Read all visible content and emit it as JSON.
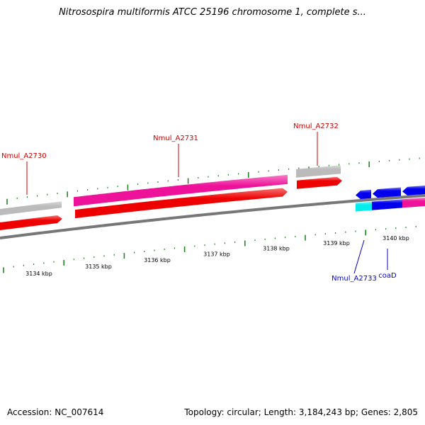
{
  "title": "Nitrosospira multiformis ATCC 25196 chromosome 1, complete s...",
  "footer": {
    "accession": "Accession: NC_007614",
    "stats": "Topology: circular; Length: 3,184,243 bp; Genes: 2,805"
  },
  "colors": {
    "backbone": "#777777",
    "tick": "#228822",
    "label_forward": "#cc0000",
    "label_reverse": "#0000cc",
    "red": "#ee0000",
    "pink": "#ee1199",
    "grey": "#bbbbbb",
    "blue": "#0000ee",
    "cyan": "#00eeee"
  },
  "kbp_labels": [
    "3134 kbp",
    "3135 kbp",
    "3136 kbp",
    "3137 kbp",
    "3138 kbp",
    "3139 kbp",
    "3140 kbp"
  ],
  "gene_labels": [
    {
      "text": "Nmul_A2730",
      "strand": "forward"
    },
    {
      "text": "Nmul_A2731",
      "strand": "forward"
    },
    {
      "text": "Nmul_A2732",
      "strand": "forward"
    },
    {
      "text": "Nmul_A2733",
      "strand": "reverse"
    },
    {
      "text": "coaD",
      "strand": "reverse"
    }
  ]
}
